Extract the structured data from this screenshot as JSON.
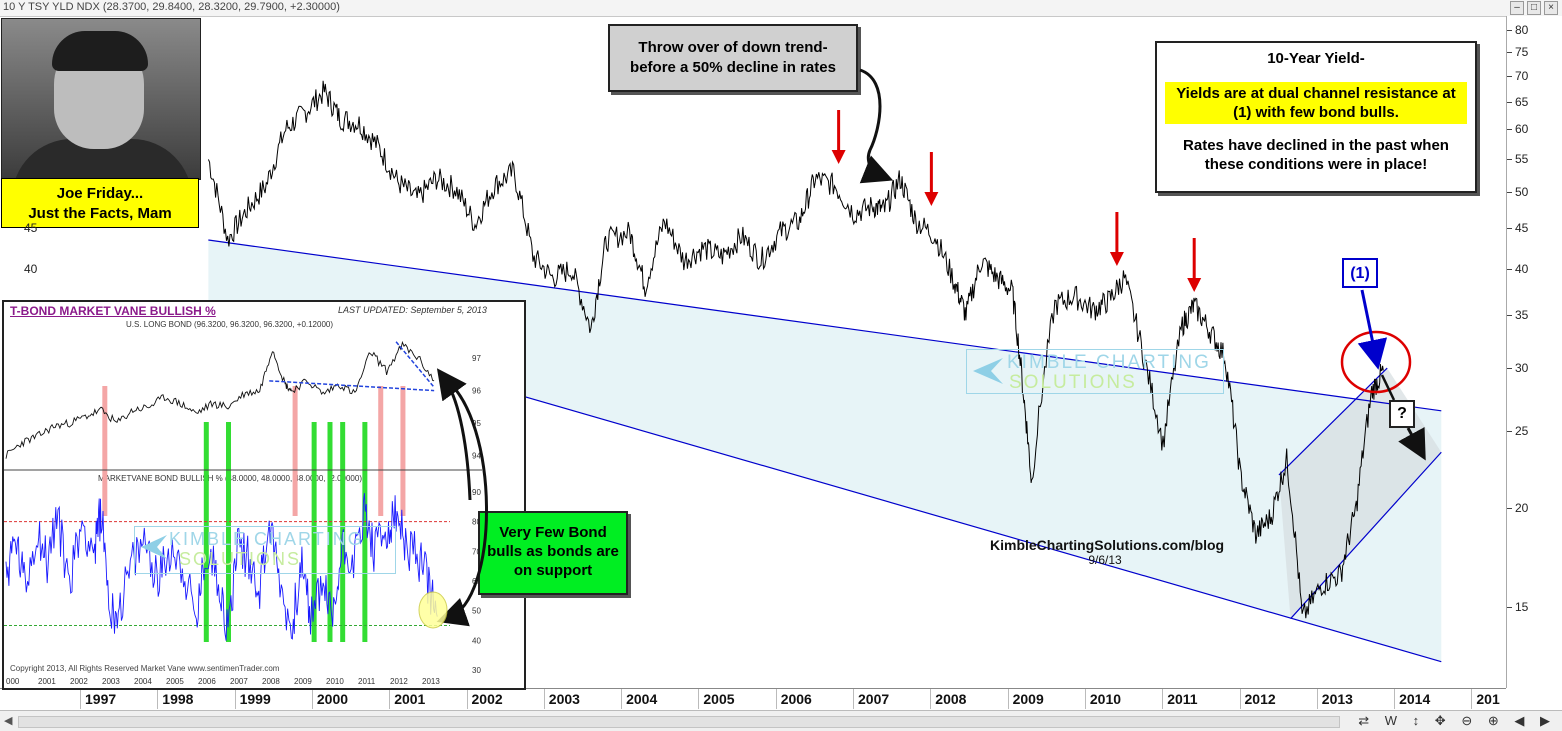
{
  "window": {
    "title": "10 Y TSY YLD NDX (28.3700, 29.8400, 28.3200, 29.7900, +2.30000)",
    "buttons": [
      "–",
      "□",
      "×"
    ]
  },
  "statusbar": {
    "icons": [
      "refresh-icon",
      "weekly-icon",
      "scroll-icon",
      "pan-icon",
      "zoom-out-icon",
      "zoom-in-icon",
      "scroll-left-icon",
      "scroll-right-icon"
    ],
    "labels": [
      "⇄",
      "W",
      "↕",
      "✥",
      "⊖",
      "⊕",
      "◀",
      "▶"
    ]
  },
  "annotations": {
    "joe_line1": "Joe Friday...",
    "joe_line2": "Just the Facts, Mam",
    "throw_line1": "Throw over of down trend-",
    "throw_line2": "before a 50% decline in rates",
    "yield_title": "10-Year Yield-",
    "yield_highlight_line1": "Yields are at dual channel resistance at",
    "yield_highlight_line2": "(1) with few bond bulls.",
    "yield_body_line1": "Rates have declined in the past when",
    "yield_body_line2": "these conditions were in place!",
    "marker_1": "(1)",
    "marker_q": "?",
    "watermark_line1": "KIMBLE CHARTING",
    "watermark_line2": "SOLUTIONS",
    "credit_line1": "KimbleChartingSolutions.com/blog",
    "credit_line2": "9/6/13",
    "bulls_line1": "Very Few Bond",
    "bulls_line2": "bulls as bonds are",
    "bulls_line3": "on support"
  },
  "inset": {
    "title": "T-BOND MARKET VANE BULLISH %",
    "updated": "LAST UPDATED:  September 5, 2013",
    "top_label": "U.S. LONG BOND (96.3200, 96.3200, 96.3200, +0.12000)",
    "bottom_label": "MARKETVANE BOND BULLISH % (48.0000, 48.0000, 48.0000, -2.00000)",
    "copyright": "Copyright 2013, All Rights Reserved  Market Vane  www.sentimenTrader.com",
    "top_ticks": [
      "97",
      "96",
      "95",
      "94"
    ],
    "bottom_ticks": [
      "90",
      "80",
      "70",
      "60",
      "50",
      "40",
      "30"
    ],
    "years": [
      "000",
      "2001",
      "2002",
      "2003",
      "2004",
      "2005",
      "2006",
      "2007",
      "2008",
      "2009",
      "2010",
      "2011",
      "2012",
      "2013"
    ],
    "watermark_line1": "KIMBLE CHARTING",
    "watermark_line2": "SOLUTIONS"
  },
  "colors": {
    "channel_fill": "#e7f4f7",
    "channel_line": "#0000cc",
    "price_line": "#000000",
    "highlight_yellow": "#ffff00",
    "green_box": "#00ee22",
    "gray_box": "#d0d0d0",
    "arrow_red": "#dd0000",
    "circle_red": "#dd0000",
    "inset_sentiment": "#1a1aff",
    "inset_pink": "#f4a6a6",
    "inset_green": "#33dd33"
  },
  "chart_data": [
    {
      "type": "line",
      "title": "10 Y TSY YLD NDX (28.3700, 29.8400, 28.3200, 29.7900, +2.30000)",
      "y_scale": "log",
      "ylim": [
        13.0,
        82.0
      ],
      "y_ticks": [
        80,
        75,
        70,
        65,
        60,
        55,
        50,
        45,
        40,
        35,
        30,
        25,
        20,
        15
      ],
      "x_ticks": [
        "1997",
        "1998",
        "1999",
        "2000",
        "2001",
        "2002",
        "2003",
        "2004",
        "2005",
        "2006",
        "2007",
        "2008",
        "2009",
        "2010",
        "2011",
        "2012",
        "2013",
        "2014",
        "201"
      ],
      "series": [
        {
          "x": [
            1998.35,
            1998.6,
            1998.85,
            1999.1,
            1999.35,
            1999.6,
            1999.85,
            2000.05,
            2000.3,
            2000.55,
            2000.8,
            2001.05,
            2001.3,
            2001.55,
            2001.8,
            2002.05,
            2002.3,
            2002.55,
            2002.8,
            2003.05,
            2003.3,
            2003.5,
            2003.8,
            2004.0,
            2004.25,
            2004.5,
            2004.75,
            2005.0,
            2005.25,
            2005.5,
            2005.75,
            2006.0,
            2006.2,
            2006.45,
            2006.7,
            2006.95,
            2007.1,
            2007.3,
            2007.5,
            2007.75,
            2008.0,
            2008.15,
            2008.35,
            2008.55,
            2008.75,
            2008.9,
            2009.0,
            2009.3,
            2009.55,
            2009.8,
            2010.0,
            2010.2,
            2010.45,
            2010.7,
            2010.95,
            2011.1,
            2011.3,
            2011.5,
            2011.7,
            2011.9,
            2012.1,
            2012.3,
            2012.5,
            2012.75,
            2013.0,
            2013.2,
            2013.4,
            2013.55
          ],
          "y": [
            55.0,
            43.5,
            47.5,
            51.0,
            60.0,
            63.0,
            67.0,
            62.0,
            61.0,
            57.0,
            51.5,
            49.0,
            52.0,
            50.5,
            45.5,
            51.0,
            53.0,
            41.5,
            39.0,
            40.0,
            33.5,
            43.5,
            44.5,
            38.0,
            46.0,
            41.0,
            42.5,
            41.5,
            44.0,
            41.0,
            44.5,
            46.0,
            52.0,
            51.0,
            47.0,
            48.0,
            47.5,
            52.0,
            46.0,
            44.0,
            38.5,
            35.0,
            41.0,
            39.0,
            37.5,
            27.5,
            21.5,
            36.0,
            37.0,
            35.5,
            36.5,
            39.0,
            31.0,
            24.0,
            34.0,
            36.0,
            33.5,
            31.0,
            22.0,
            18.5,
            19.5,
            23.0,
            14.5,
            16.0,
            16.5,
            20.0,
            28.0,
            29.8
          ]
        }
      ],
      "channels": [
        {
          "from": [
            1998.35,
            43.5
          ],
          "to": [
            2014.3,
            26.5
          ]
        },
        {
          "from": [
            1998.35,
            36.0
          ],
          "to": [
            2014.3,
            12.8
          ]
        },
        {
          "from": [
            2012.35,
            14.5
          ],
          "to": [
            2014.3,
            23.5
          ]
        },
        {
          "from": [
            2012.2,
            22.0
          ],
          "to": [
            2013.6,
            30.0
          ]
        }
      ],
      "arrows_at": [
        2006.4,
        2007.6,
        2010.0,
        2011.0
      ]
    },
    {
      "type": "line",
      "title": "U.S. LONG BOND (96.3200, 96.3200, 96.3200, +0.12000)",
      "ylim": [
        93.5,
        97.8
      ],
      "y_ticks": [
        97,
        96,
        95,
        94
      ],
      "series": [
        {
          "name": "U.S. LONG BOND",
          "x": [
            2000.0,
            2000.5,
            2001.0,
            2001.5,
            2002.0,
            2002.5,
            2003.0,
            2003.5,
            2004.0,
            2004.5,
            2005.0,
            2005.5,
            2006.0,
            2006.5,
            2007.0,
            2007.5,
            2008.0,
            2008.4,
            2008.8,
            2009.0,
            2009.5,
            2010.0,
            2010.5,
            2011.0,
            2011.5,
            2012.0,
            2012.5,
            2013.0,
            2013.5
          ],
          "y": [
            94.0,
            94.4,
            94.6,
            94.9,
            95.0,
            95.2,
            95.4,
            95.0,
            95.4,
            95.5,
            95.8,
            95.6,
            95.3,
            95.6,
            95.5,
            95.9,
            96.0,
            97.3,
            96.2,
            96.0,
            96.3,
            95.9,
            96.2,
            95.9,
            97.2,
            96.6,
            97.4,
            97.0,
            96.3
          ]
        }
      ],
      "xlim": [
        2000.0,
        2014.0
      ]
    },
    {
      "type": "line",
      "title": "MARKETVANE BOND BULLISH % (48.0000, 48.0000, 48.0000, -2.00000)",
      "ylim": [
        28,
        92
      ],
      "y_ticks": [
        90,
        80,
        70,
        60,
        50,
        40,
        30
      ],
      "reference_lines": [
        80,
        45
      ],
      "series": [
        {
          "name": "MARKETVANE BOND BULLISH %",
          "x": [
            2000.0,
            2000.3,
            2000.6,
            2001.0,
            2001.3,
            2001.6,
            2002.0,
            2002.4,
            2002.8,
            2003.0,
            2003.3,
            2003.6,
            2004.0,
            2004.4,
            2004.8,
            2005.2,
            2005.6,
            2006.0,
            2006.3,
            2006.7,
            2007.0,
            2007.3,
            2007.7,
            2008.0,
            2008.3,
            2008.6,
            2009.0,
            2009.3,
            2009.6,
            2010.0,
            2010.3,
            2010.6,
            2011.0,
            2011.3,
            2011.6,
            2012.0,
            2012.3,
            2012.6,
            2013.0,
            2013.3,
            2013.6
          ],
          "y": [
            62,
            74,
            58,
            78,
            66,
            82,
            60,
            80,
            70,
            84,
            48,
            52,
            66,
            74,
            60,
            72,
            64,
            46,
            70,
            62,
            42,
            74,
            66,
            58,
            80,
            62,
            42,
            66,
            48,
            60,
            46,
            72,
            68,
            84,
            70,
            76,
            82,
            72,
            68,
            60,
            48
          ]
        }
      ],
      "xlim": [
        2000.0,
        2014.0
      ],
      "pink_spikes": [
        2003.1,
        2009.1,
        2011.8,
        2012.5
      ],
      "green_lows": [
        2006.3,
        2007.0,
        2009.7,
        2010.2,
        2010.6,
        2011.3
      ]
    }
  ]
}
